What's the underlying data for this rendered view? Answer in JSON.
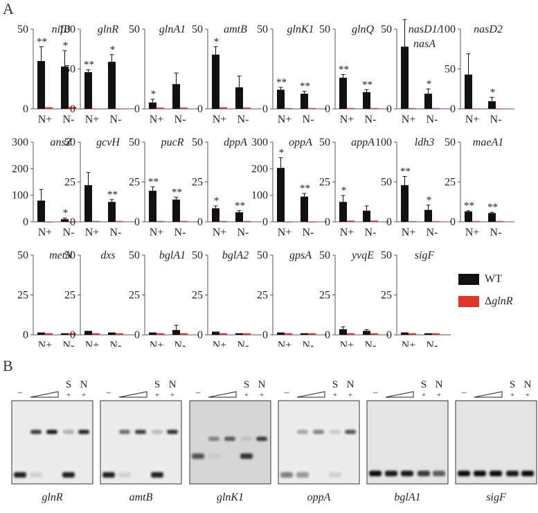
{
  "panels": {
    "a_label": "A",
    "b_label": "B"
  },
  "colors": {
    "wt": "#111111",
    "mutant": "#e0362a",
    "axis": "#555555"
  },
  "legend": {
    "wt_label": "WT",
    "mutant_prefix": "Δ",
    "mutant_gene": "glnR"
  },
  "x_categories": [
    "N+",
    "N-"
  ],
  "chart_data": [
    {
      "type": "bar",
      "title": "nifB",
      "ylim": [
        0,
        50
      ],
      "yticks": [
        0,
        50
      ],
      "categories": [
        "N+",
        "N-"
      ],
      "series": [
        {
          "name": "WT",
          "values": [
            30,
            26.5
          ],
          "errors": [
            9,
            10
          ]
        },
        {
          "name": "ΔglnR",
          "values": [
            1,
            1.2
          ],
          "errors": [
            0,
            0
          ]
        }
      ],
      "annotations": [
        "**",
        "*"
      ]
    },
    {
      "type": "bar",
      "title": "glnR",
      "ylim": [
        0,
        100
      ],
      "yticks": [
        0,
        50,
        100
      ],
      "categories": [
        "N+",
        "N-"
      ],
      "series": [
        {
          "name": "WT",
          "values": [
            46,
            59
          ],
          "errors": [
            3,
            9
          ]
        },
        {
          "name": "ΔglnR",
          "values": [
            0.5,
            0.5
          ],
          "errors": [
            0,
            0
          ]
        }
      ],
      "annotations": [
        "**",
        "*"
      ]
    },
    {
      "type": "bar",
      "title": "glnA1",
      "ylim": [
        0,
        50
      ],
      "yticks": [
        0,
        50
      ],
      "categories": [
        "N+",
        "N-"
      ],
      "series": [
        {
          "name": "WT",
          "values": [
            4,
            15.5
          ],
          "errors": [
            2,
            7
          ]
        },
        {
          "name": "ΔglnR",
          "values": [
            0.8,
            0.8
          ],
          "errors": [
            0,
            0
          ]
        }
      ],
      "annotations": [
        "*",
        ""
      ]
    },
    {
      "type": "bar",
      "title": "amtB",
      "ylim": [
        0,
        50
      ],
      "yticks": [
        0,
        50
      ],
      "categories": [
        "N+",
        "N-"
      ],
      "series": [
        {
          "name": "WT",
          "values": [
            34,
            13.5
          ],
          "errors": [
            5,
            7
          ]
        },
        {
          "name": "ΔglnR",
          "values": [
            1,
            0.8
          ],
          "errors": [
            0,
            0
          ]
        }
      ],
      "annotations": [
        "*",
        ""
      ]
    },
    {
      "type": "bar",
      "title": "glnK1",
      "ylim": [
        0,
        50
      ],
      "yticks": [
        0,
        50
      ],
      "categories": [
        "N+",
        "N-"
      ],
      "series": [
        {
          "name": "WT",
          "values": [
            12,
            9.5
          ],
          "errors": [
            1.5,
            1.5
          ]
        },
        {
          "name": "ΔglnR",
          "values": [
            0.5,
            0.5
          ],
          "errors": [
            0,
            0
          ]
        }
      ],
      "annotations": [
        "**",
        "**"
      ]
    },
    {
      "type": "bar",
      "title": "glnQ",
      "ylim": [
        0,
        50
      ],
      "yticks": [
        0,
        50
      ],
      "categories": [
        "N+",
        "N-"
      ],
      "series": [
        {
          "name": "WT",
          "values": [
            19.5,
            10.5
          ],
          "errors": [
            2,
            1.5
          ]
        },
        {
          "name": "ΔglnR",
          "values": [
            0.5,
            0.5
          ],
          "errors": [
            0,
            0
          ]
        }
      ],
      "annotations": [
        "**",
        "**"
      ]
    },
    {
      "type": "bar",
      "title": "nasD1/",
      "title2": "nasA",
      "ylim": [
        0,
        50
      ],
      "yticks": [
        0,
        50
      ],
      "categories": [
        "N+",
        "N-"
      ],
      "series": [
        {
          "name": "WT",
          "values": [
            39,
            9.5
          ],
          "errors": [
            17,
            3
          ]
        },
        {
          "name": "ΔglnR",
          "values": [
            0.5,
            0.5
          ],
          "errors": [
            0,
            0
          ]
        }
      ],
      "annotations": [
        "",
        "*"
      ]
    },
    {
      "type": "bar",
      "title": "nasD2",
      "ylim": [
        0,
        100
      ],
      "yticks": [
        0,
        50,
        100
      ],
      "categories": [
        "N+",
        "N-"
      ],
      "series": [
        {
          "name": "WT",
          "values": [
            43,
            9.5
          ],
          "errors": [
            26,
            5
          ]
        },
        {
          "name": "ΔglnR",
          "values": [
            0.5,
            0.5
          ],
          "errors": [
            0,
            0
          ]
        }
      ],
      "annotations": [
        "",
        "*"
      ]
    },
    {
      "type": "bar",
      "title": "ansZ",
      "ylim": [
        0,
        300
      ],
      "yticks": [
        0,
        100,
        200,
        300
      ],
      "categories": [
        "N+",
        "N-"
      ],
      "series": [
        {
          "name": "WT",
          "values": [
            80,
            10
          ],
          "errors": [
            42,
            4
          ]
        },
        {
          "name": "ΔglnR",
          "values": [
            1,
            1
          ],
          "errors": [
            0,
            0
          ]
        }
      ],
      "annotations": [
        "",
        "*"
      ]
    },
    {
      "type": "bar",
      "title": "gcvH",
      "ylim": [
        0,
        50
      ],
      "yticks": [
        0,
        25,
        50
      ],
      "categories": [
        "N+",
        "N-"
      ],
      "series": [
        {
          "name": "WT",
          "values": [
            23,
            12.5
          ],
          "errors": [
            8,
            1.5
          ]
        },
        {
          "name": "ΔglnR",
          "values": [
            0.5,
            0.5
          ],
          "errors": [
            0,
            0
          ]
        }
      ],
      "annotations": [
        "",
        "**"
      ]
    },
    {
      "type": "bar",
      "title": "pucR",
      "ylim": [
        0,
        50
      ],
      "yticks": [
        0,
        25,
        50
      ],
      "categories": [
        "N+",
        "N-"
      ],
      "series": [
        {
          "name": "WT",
          "values": [
            19.5,
            14
          ],
          "errors": [
            2.5,
            1.5
          ]
        },
        {
          "name": "ΔglnR",
          "values": [
            0.5,
            0.5
          ],
          "errors": [
            0,
            0
          ]
        }
      ],
      "annotations": [
        "**",
        "**"
      ]
    },
    {
      "type": "bar",
      "title": "dppA",
      "ylim": [
        0,
        50
      ],
      "yticks": [
        0,
        25,
        50
      ],
      "categories": [
        "N+",
        "N-"
      ],
      "series": [
        {
          "name": "WT",
          "values": [
            8.5,
            6
          ],
          "errors": [
            1.5,
            1
          ]
        },
        {
          "name": "ΔglnR",
          "values": [
            0.5,
            0.5
          ],
          "errors": [
            0,
            0
          ]
        }
      ],
      "annotations": [
        "*",
        "**"
      ]
    },
    {
      "type": "bar",
      "title": "oppA",
      "ylim": [
        0,
        300
      ],
      "yticks": [
        0,
        100,
        200,
        300
      ],
      "categories": [
        "N+",
        "N-"
      ],
      "series": [
        {
          "name": "WT",
          "values": [
            203,
            95
          ],
          "errors": [
            38,
            12
          ]
        },
        {
          "name": "ΔglnR",
          "values": [
            1,
            1
          ],
          "errors": [
            0,
            0
          ]
        }
      ],
      "annotations": [
        "*",
        "**"
      ]
    },
    {
      "type": "bar",
      "title": "appA",
      "ylim": [
        0,
        50
      ],
      "yticks": [
        0,
        25,
        50
      ],
      "categories": [
        "N+",
        "N-"
      ],
      "series": [
        {
          "name": "WT",
          "values": [
            12.5,
            7
          ],
          "errors": [
            4,
            3
          ]
        },
        {
          "name": "ΔglnR",
          "values": [
            0.8,
            0.8
          ],
          "errors": [
            0,
            0
          ]
        }
      ],
      "annotations": [
        "*",
        ""
      ]
    },
    {
      "type": "bar",
      "title": "ldh3",
      "ylim": [
        0,
        100
      ],
      "yticks": [
        0,
        50,
        100
      ],
      "categories": [
        "N+",
        "N-"
      ],
      "series": [
        {
          "name": "WT",
          "values": [
            46,
            15
          ],
          "errors": [
            11,
            6
          ]
        },
        {
          "name": "ΔglnR",
          "values": [
            0.8,
            0.8
          ],
          "errors": [
            0,
            0
          ]
        }
      ],
      "annotations": [
        "**",
        "*"
      ]
    },
    {
      "type": "bar",
      "title": "maeA1",
      "ylim": [
        0,
        50
      ],
      "yticks": [
        0,
        25,
        50
      ],
      "categories": [
        "N+",
        "N-"
      ],
      "series": [
        {
          "name": "WT",
          "values": [
            6.5,
            5.5
          ],
          "errors": [
            0.5,
            0.5
          ]
        },
        {
          "name": "ΔglnR",
          "values": [
            0.5,
            0.5
          ],
          "errors": [
            0,
            0
          ]
        }
      ],
      "annotations": [
        "**",
        "**"
      ]
    },
    {
      "type": "bar",
      "title": "metN",
      "ylim": [
        0,
        50
      ],
      "yticks": [
        0,
        25,
        50
      ],
      "categories": [
        "N+",
        "N-"
      ],
      "series": [
        {
          "name": "WT",
          "values": [
            1.5,
            1
          ],
          "errors": [
            0,
            0
          ]
        },
        {
          "name": "ΔglnR",
          "values": [
            1,
            1
          ],
          "errors": [
            0,
            0
          ]
        }
      ],
      "annotations": [
        "",
        ""
      ]
    },
    {
      "type": "bar",
      "title": "dxs",
      "ylim": [
        0,
        50
      ],
      "yticks": [
        0,
        25,
        50
      ],
      "categories": [
        "N+",
        "N-"
      ],
      "series": [
        {
          "name": "WT",
          "values": [
            2.5,
            1.5
          ],
          "errors": [
            0,
            0
          ]
        },
        {
          "name": "ΔglnR",
          "values": [
            1,
            1
          ],
          "errors": [
            0,
            0
          ]
        }
      ],
      "annotations": [
        "",
        ""
      ]
    },
    {
      "type": "bar",
      "title": "bglA1",
      "ylim": [
        0,
        50
      ],
      "yticks": [
        0,
        25,
        50
      ],
      "categories": [
        "N+",
        "N-"
      ],
      "series": [
        {
          "name": "WT",
          "values": [
            1.5,
            3
          ],
          "errors": [
            0,
            3
          ]
        },
        {
          "name": "ΔglnR",
          "values": [
            1,
            1
          ],
          "errors": [
            0,
            0
          ]
        }
      ],
      "annotations": [
        "",
        ""
      ]
    },
    {
      "type": "bar",
      "title": "bglA2",
      "ylim": [
        0,
        50
      ],
      "yticks": [
        0,
        25,
        50
      ],
      "categories": [
        "N+",
        "N-"
      ],
      "series": [
        {
          "name": "WT",
          "values": [
            2,
            1
          ],
          "errors": [
            0,
            0
          ]
        },
        {
          "name": "ΔglnR",
          "values": [
            1,
            1
          ],
          "errors": [
            0,
            0
          ]
        }
      ],
      "annotations": [
        "",
        ""
      ]
    },
    {
      "type": "bar",
      "title": "gpsA",
      "ylim": [
        0,
        50
      ],
      "yticks": [
        0,
        25,
        50
      ],
      "categories": [
        "N+",
        "N-"
      ],
      "series": [
        {
          "name": "WT",
          "values": [
            1.5,
            1
          ],
          "errors": [
            0,
            0
          ]
        },
        {
          "name": "ΔglnR",
          "values": [
            1,
            1
          ],
          "errors": [
            0,
            0
          ]
        }
      ],
      "annotations": [
        "",
        ""
      ]
    },
    {
      "type": "bar",
      "title": "yvqE",
      "ylim": [
        0,
        50
      ],
      "yticks": [
        0,
        25,
        50
      ],
      "categories": [
        "N+",
        "N-"
      ],
      "series": [
        {
          "name": "WT",
          "values": [
            3.5,
            2.5
          ],
          "errors": [
            1.5,
            0.8
          ]
        },
        {
          "name": "ΔglnR",
          "values": [
            1,
            1
          ],
          "errors": [
            0,
            0
          ]
        }
      ],
      "annotations": [
        "",
        ""
      ]
    },
    {
      "type": "bar",
      "title": "sigF",
      "ylim": [
        0,
        50
      ],
      "yticks": [
        0,
        25,
        50
      ],
      "categories": [
        "N+",
        "N-"
      ],
      "series": [
        {
          "name": "WT",
          "values": [
            1.5,
            1
          ],
          "errors": [
            0,
            0
          ]
        },
        {
          "name": "ΔglnR",
          "values": [
            1,
            1
          ],
          "errors": [
            0,
            0
          ]
        }
      ],
      "annotations": [
        "",
        ""
      ]
    }
  ],
  "gels": [
    {
      "label": "glnR",
      "lanes": [
        {
          "shifted": 0,
          "free": 0.85
        },
        {
          "shifted": 0.75,
          "free": 0.1
        },
        {
          "shifted": 0.9,
          "free": 0
        },
        {
          "shifted": 0.25,
          "free": 0.85
        },
        {
          "shifted": 0.85,
          "free": 0
        }
      ]
    },
    {
      "label": "amtB",
      "lanes": [
        {
          "shifted": 0,
          "free": 0.85
        },
        {
          "shifted": 0.55,
          "free": 0.1
        },
        {
          "shifted": 0.75,
          "free": 0
        },
        {
          "shifted": 0.2,
          "free": 0.85
        },
        {
          "shifted": 0.8,
          "free": 0
        }
      ]
    },
    {
      "label": "glnK1",
      "lanes": [
        {
          "shifted": 0,
          "free": 0.6
        },
        {
          "shifted": 0.4,
          "free": 0.05
        },
        {
          "shifted": 0.6,
          "free": 0
        },
        {
          "shifted": 0.1,
          "free": 0.75
        },
        {
          "shifted": 0.75,
          "free": 0
        }
      ]
    },
    {
      "label": "oppA",
      "lanes": [
        {
          "shifted": 0,
          "free": 0.45
        },
        {
          "shifted": 0.3,
          "free": 0.35
        },
        {
          "shifted": 0.45,
          "free": 0
        },
        {
          "shifted": 0.15,
          "free": 0.1
        },
        {
          "shifted": 0.65,
          "free": 0
        }
      ]
    },
    {
      "label": "bglA1",
      "lanes": [
        {
          "shifted": 0,
          "free": 0.95
        },
        {
          "shifted": 0,
          "free": 0.9
        },
        {
          "shifted": 0,
          "free": 0.9
        },
        {
          "shifted": 0,
          "free": 0.75
        },
        {
          "shifted": 0,
          "free": 0.6
        }
      ]
    },
    {
      "label": "sigF",
      "lanes": [
        {
          "shifted": 0,
          "free": 0.95
        },
        {
          "shifted": 0,
          "free": 0.95
        },
        {
          "shifted": 0,
          "free": 0.95
        },
        {
          "shifted": 0,
          "free": 0.9
        },
        {
          "shifted": 0,
          "free": 0.95
        }
      ]
    }
  ],
  "gel_lane_labels": {
    "minus": "–",
    "s": "S",
    "n": "N",
    "plus": "+"
  }
}
